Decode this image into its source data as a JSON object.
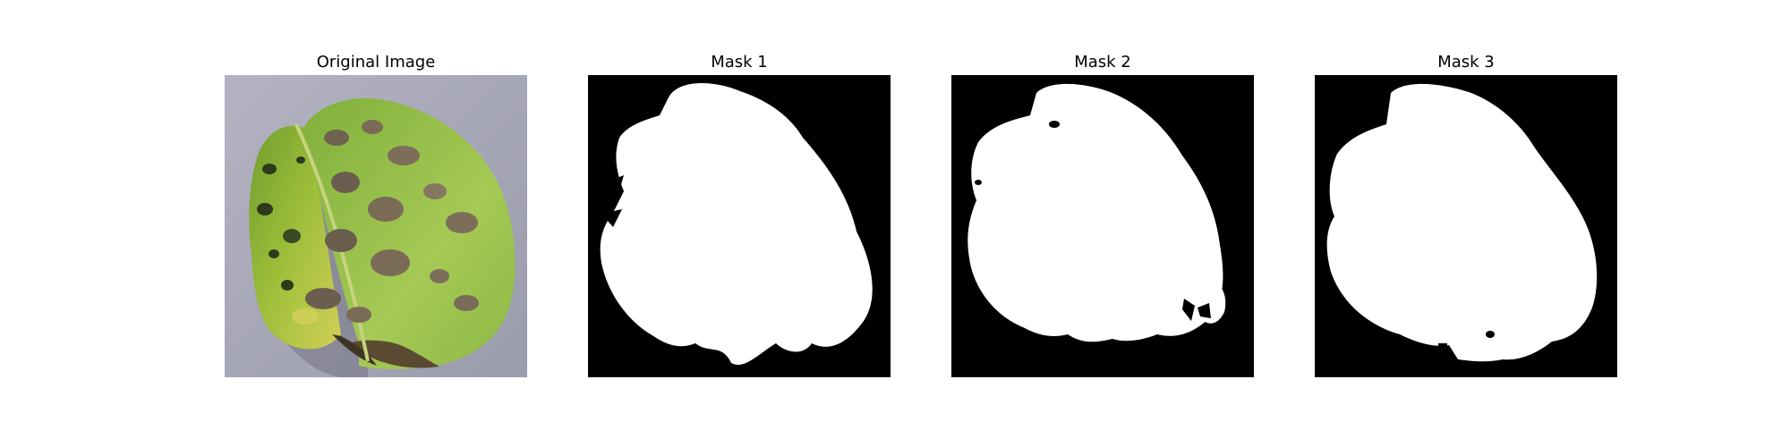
{
  "figure": {
    "panels": [
      {
        "title": "Original Image"
      },
      {
        "title": "Mask 1"
      },
      {
        "title": "Mask 2"
      },
      {
        "title": "Mask 3"
      }
    ]
  },
  "colors": {
    "page_background": "#ffffff",
    "mask_background": "#000000",
    "mask_foreground": "#ffffff",
    "photo_backdrop": "#a9aab8",
    "leaf_green": "#8fbf3e",
    "leaf_dark_green": "#4f7d22",
    "leaf_yellow": "#c9cf4c",
    "lesion_brown": "#7a6a55"
  }
}
